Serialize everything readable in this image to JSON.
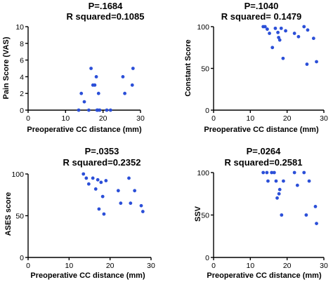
{
  "chart_data": [
    {
      "type": "scatter",
      "p_value": "P=.1684",
      "r_squared": "R squared=0.1085",
      "xlabel": "Preoperative CC distance (mm)",
      "ylabel": "Pain Score (VAS)",
      "xlim": [
        0,
        30
      ],
      "ylim": [
        0,
        10
      ],
      "xticks": [
        "0",
        "10",
        "20",
        "30"
      ],
      "yticks": [
        "0",
        "2",
        "4",
        "6",
        "8",
        "10"
      ],
      "points": [
        {
          "x": 13.5,
          "y": 0
        },
        {
          "x": 14.2,
          "y": 2
        },
        {
          "x": 15.0,
          "y": 1
        },
        {
          "x": 16.2,
          "y": 0
        },
        {
          "x": 16.8,
          "y": 5
        },
        {
          "x": 17.3,
          "y": 3
        },
        {
          "x": 17.8,
          "y": 3
        },
        {
          "x": 18.2,
          "y": 4
        },
        {
          "x": 18.4,
          "y": 0
        },
        {
          "x": 18.6,
          "y": 0
        },
        {
          "x": 18.8,
          "y": 2
        },
        {
          "x": 19.1,
          "y": 0
        },
        {
          "x": 21.0,
          "y": 0
        },
        {
          "x": 22.0,
          "y": 0
        },
        {
          "x": 25.3,
          "y": 4
        },
        {
          "x": 25.8,
          "y": 2
        },
        {
          "x": 27.8,
          "y": 3
        },
        {
          "x": 28.0,
          "y": 5
        }
      ]
    },
    {
      "type": "scatter",
      "p_value": "P=.1040",
      "r_squared": "R squared= 0.1479",
      "xlabel": "Preoperative CC distance (mm)",
      "ylabel": "Constant Score",
      "xlim": [
        0,
        30
      ],
      "ylim": [
        0,
        100
      ],
      "xticks": [
        "0",
        "10",
        "20",
        "30"
      ],
      "yticks": [
        "0",
        "50",
        "100"
      ],
      "points": [
        {
          "x": 13.5,
          "y": 100
        },
        {
          "x": 14.0,
          "y": 100
        },
        {
          "x": 14.6,
          "y": 97
        },
        {
          "x": 15.2,
          "y": 92
        },
        {
          "x": 16.0,
          "y": 75
        },
        {
          "x": 16.8,
          "y": 98
        },
        {
          "x": 17.5,
          "y": 93
        },
        {
          "x": 17.7,
          "y": 87
        },
        {
          "x": 18.0,
          "y": 84
        },
        {
          "x": 18.4,
          "y": 98
        },
        {
          "x": 18.9,
          "y": 62
        },
        {
          "x": 19.6,
          "y": 95
        },
        {
          "x": 22.0,
          "y": 92
        },
        {
          "x": 23.1,
          "y": 88
        },
        {
          "x": 24.6,
          "y": 100
        },
        {
          "x": 25.4,
          "y": 55
        },
        {
          "x": 25.6,
          "y": 96
        },
        {
          "x": 27.2,
          "y": 86
        },
        {
          "x": 28.0,
          "y": 58
        }
      ]
    },
    {
      "type": "scatter",
      "p_value": "P=.0353",
      "r_squared": "R squared=0.2352",
      "xlabel": "Preoperative CC distance (mm)",
      "ylabel": "ASES score",
      "xlim": [
        0,
        30
      ],
      "ylim": [
        0,
        100
      ],
      "xticks": [
        "0",
        "10",
        "20",
        "30"
      ],
      "yticks": [
        "0",
        "50",
        "100"
      ],
      "points": [
        {
          "x": 13.5,
          "y": 100
        },
        {
          "x": 14.2,
          "y": 95
        },
        {
          "x": 14.8,
          "y": 88
        },
        {
          "x": 15.8,
          "y": 95
        },
        {
          "x": 16.5,
          "y": 82
        },
        {
          "x": 17.0,
          "y": 93
        },
        {
          "x": 17.3,
          "y": 58
        },
        {
          "x": 17.8,
          "y": 90
        },
        {
          "x": 18.2,
          "y": 73
        },
        {
          "x": 18.5,
          "y": 52
        },
        {
          "x": 19.0,
          "y": 92
        },
        {
          "x": 22.0,
          "y": 80
        },
        {
          "x": 22.6,
          "y": 65
        },
        {
          "x": 24.6,
          "y": 95
        },
        {
          "x": 25.0,
          "y": 65
        },
        {
          "x": 26.0,
          "y": 80
        },
        {
          "x": 27.6,
          "y": 62
        },
        {
          "x": 28.0,
          "y": 55
        }
      ]
    },
    {
      "type": "scatter",
      "p_value": "P=.0264",
      "r_squared": "R squared=0.2581",
      "xlabel": "Preoperative CC distance (mm)",
      "ylabel": "SSV",
      "xlim": [
        0,
        30
      ],
      "ylim": [
        0,
        100
      ],
      "xticks": [
        "0",
        "10",
        "20",
        "30"
      ],
      "yticks": [
        "0",
        "50",
        "100"
      ],
      "points": [
        {
          "x": 13.5,
          "y": 100
        },
        {
          "x": 14.5,
          "y": 100
        },
        {
          "x": 14.8,
          "y": 90
        },
        {
          "x": 15.8,
          "y": 100
        },
        {
          "x": 16.5,
          "y": 100
        },
        {
          "x": 17.0,
          "y": 90
        },
        {
          "x": 17.3,
          "y": 70
        },
        {
          "x": 17.8,
          "y": 75
        },
        {
          "x": 18.0,
          "y": 80
        },
        {
          "x": 18.5,
          "y": 50
        },
        {
          "x": 19.0,
          "y": 90
        },
        {
          "x": 22.0,
          "y": 100
        },
        {
          "x": 22.8,
          "y": 85
        },
        {
          "x": 24.6,
          "y": 100
        },
        {
          "x": 25.2,
          "y": 50
        },
        {
          "x": 26.0,
          "y": 90
        },
        {
          "x": 27.7,
          "y": 60
        },
        {
          "x": 28.0,
          "y": 40
        }
      ]
    }
  ],
  "colors": {
    "points": "#2b4fd8",
    "axis": "#000000"
  }
}
